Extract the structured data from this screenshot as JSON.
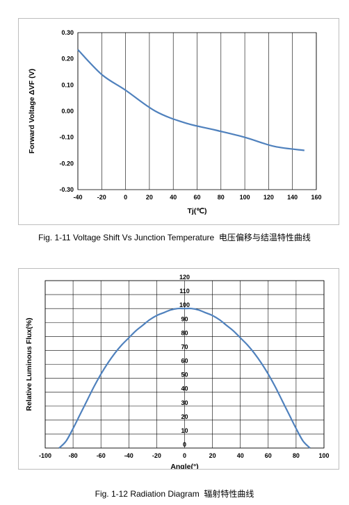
{
  "figures": [
    {
      "caption_label": "Fig. 1-11",
      "caption_text": "Voltage Shift Vs Junction Temperature",
      "caption_cn": "电压偏移与结温特性曲线"
    },
    {
      "caption_label": "Fig. 1-12",
      "caption_text": "Radiation Diagram",
      "caption_cn": "辐射特性曲线"
    }
  ],
  "colors": {
    "line": "#4f81bd",
    "grid": "#000000",
    "watermark": "#dde3ee"
  },
  "chart_data": [
    {
      "type": "line",
      "xlabel": "Tj(℃)",
      "ylabel": "Forward Voltage ΔVF (V)",
      "xlim": [
        -40,
        160
      ],
      "ylim": [
        -0.3,
        0.3
      ],
      "xticks": [
        "-40",
        "-20",
        "0",
        "20",
        "40",
        "60",
        "80",
        "100",
        "120",
        "140",
        "160"
      ],
      "yticks": [
        "0.30",
        "0.20",
        "0.10",
        "0.00",
        "-0.10",
        "-0.20",
        "-0.30"
      ],
      "grid": "vertical",
      "x": [
        -40,
        -20,
        0,
        25,
        50,
        75,
        100,
        125,
        150
      ],
      "y": [
        0.235,
        0.14,
        0.08,
        0.0,
        -0.045,
        -0.072,
        -0.1,
        -0.135,
        -0.15
      ]
    },
    {
      "type": "line",
      "xlabel": "Angle(°)",
      "ylabel": "Relative Luminous Flux(%)",
      "xlim": [
        -100,
        100
      ],
      "ylim": [
        0,
        120
      ],
      "xticks": [
        "-100",
        "-80",
        "-60",
        "-40",
        "-20",
        "0",
        "20",
        "40",
        "60",
        "80",
        "100"
      ],
      "yticks": [
        "120",
        "110",
        "100",
        "90",
        "80",
        "70",
        "60",
        "50",
        "40",
        "30",
        "20",
        "10",
        "0"
      ],
      "grid": "both",
      "x": [
        -90,
        -85,
        -80,
        -75,
        -70,
        -65,
        -60,
        -55,
        -50,
        -45,
        -40,
        -35,
        -30,
        -25,
        -20,
        -15,
        -10,
        -5,
        0,
        5,
        10,
        15,
        20,
        25,
        30,
        35,
        40,
        45,
        50,
        55,
        60,
        65,
        70,
        75,
        80,
        85,
        90
      ],
      "y": [
        0,
        5,
        14,
        24,
        34,
        44,
        53,
        61,
        68,
        74,
        79,
        84,
        88,
        92,
        95,
        97,
        99,
        100,
        100,
        100,
        99,
        97,
        95,
        92,
        88,
        84,
        79,
        74,
        68,
        61,
        53,
        44,
        34,
        24,
        14,
        5,
        0
      ]
    }
  ]
}
